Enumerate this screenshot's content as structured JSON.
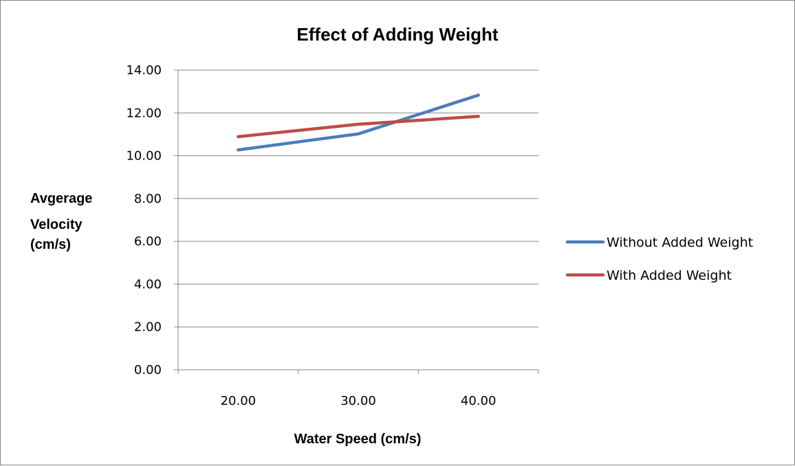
{
  "chart_data": {
    "type": "line",
    "title": "Effect of Adding Weight",
    "xlabel": "Water Speed (cm/s)",
    "ylabel": [
      "Avgerage",
      "Velocity",
      "(cm/s)"
    ],
    "categories": [
      "20.00",
      "30.00",
      "40.00"
    ],
    "y_ticks": [
      "0.00",
      "2.00",
      "4.00",
      "6.00",
      "8.00",
      "10.00",
      "12.00",
      "14.00"
    ],
    "ylim": [
      0,
      14
    ],
    "grid": true,
    "legend_position": "right",
    "series": [
      {
        "name": "Without Added Weight",
        "values": [
          10.27,
          11.02,
          12.83
        ],
        "color": "#4a7ebb"
      },
      {
        "name": "With Added Weight",
        "values": [
          10.89,
          11.47,
          11.84
        ],
        "color": "#be4b48"
      }
    ]
  }
}
